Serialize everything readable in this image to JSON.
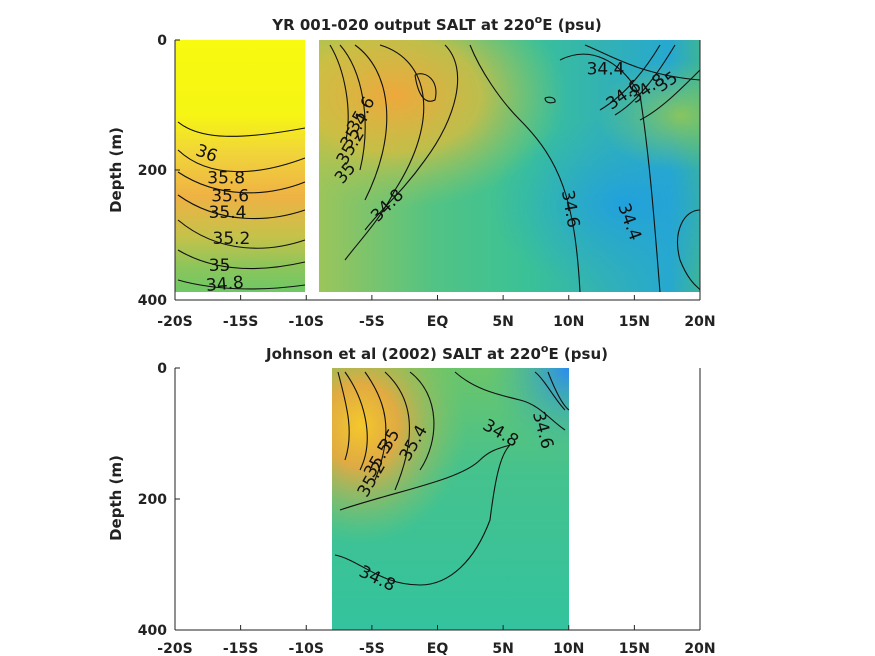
{
  "chart_data": [
    {
      "type": "heatmap",
      "title": "YR 001-020 output SALT at 220",
      "title_sup": "o",
      "title_end": "E (psu)",
      "ylabel": "Depth (m)",
      "xlim": [
        -20,
        20
      ],
      "ylim": [
        0,
        400
      ],
      "y_inverted": true,
      "x_ticks": [
        -20,
        -15,
        -10,
        -5,
        0,
        5,
        10,
        15,
        20
      ],
      "x_tick_labels": [
        "-20S",
        "-15S",
        "-10S",
        "-5S",
        "EQ",
        "5N",
        "10N",
        "15N",
        "20N"
      ],
      "y_ticks": [
        0,
        200,
        400
      ],
      "y_tick_labels": [
        "0",
        "200",
        "400"
      ],
      "data_extent": {
        "x": [
          -20,
          20
        ],
        "y": [
          0,
          385
        ]
      },
      "gap_x": [
        -10.2,
        -9.3
      ],
      "contour_labels": [
        {
          "text": "34.4",
          "x": 12.8,
          "y": 45,
          "angle": 0
        },
        {
          "text": "34.6",
          "x": 14.2,
          "y": 85,
          "angle": -35
        },
        {
          "text": "34.8",
          "x": 16.0,
          "y": 75,
          "angle": -35
        },
        {
          "text": "35",
          "x": 17.5,
          "y": 65,
          "angle": -35
        },
        {
          "text": "35.6",
          "x": -5.8,
          "y": 115,
          "angle": -60
        },
        {
          "text": "35.4",
          "x": -6.3,
          "y": 140,
          "angle": -60
        },
        {
          "text": "35.2",
          "x": -6.6,
          "y": 165,
          "angle": -60
        },
        {
          "text": "35",
          "x": -7.0,
          "y": 205,
          "angle": -50
        },
        {
          "text": "34.8",
          "x": -3.8,
          "y": 255,
          "angle": -45
        },
        {
          "text": "34.6",
          "x": 10.1,
          "y": 260,
          "angle": 80
        },
        {
          "text": "34.4",
          "x": 14.6,
          "y": 280,
          "angle": 70
        },
        {
          "text": "36",
          "x": -17.6,
          "y": 175,
          "angle": 20
        },
        {
          "text": "35.8",
          "x": -16.1,
          "y": 213,
          "angle": 0
        },
        {
          "text": "35.6",
          "x": -15.8,
          "y": 241,
          "angle": 0
        },
        {
          "text": "35.4",
          "x": -16.0,
          "y": 266,
          "angle": 0
        },
        {
          "text": "35.2",
          "x": -15.7,
          "y": 306,
          "angle": 0
        },
        {
          "text": "35",
          "x": -16.6,
          "y": 348,
          "angle": 0
        },
        {
          "text": "34.8",
          "x": -16.2,
          "y": 376,
          "angle": -5
        }
      ]
    },
    {
      "type": "heatmap",
      "title": "Johnson et al (2002) SALT at 220",
      "title_sup": "o",
      "title_end": "E (psu)",
      "ylabel": "Depth (m)",
      "xlim": [
        -20,
        20
      ],
      "ylim": [
        0,
        400
      ],
      "y_inverted": true,
      "x_ticks": [
        -20,
        -15,
        -10,
        -5,
        0,
        5,
        10,
        15,
        20
      ],
      "x_tick_labels": [
        "-20S",
        "-15S",
        "-10S",
        "-5S",
        "EQ",
        "5N",
        "10N",
        "15N",
        "20N"
      ],
      "y_ticks": [
        0,
        200,
        400
      ],
      "y_tick_labels": [
        "0",
        "200",
        "400"
      ],
      "data_extent": {
        "x": [
          -8,
          10
        ],
        "y": [
          0,
          400
        ]
      },
      "contour_labels": [
        {
          "text": "34.8",
          "x": 4.8,
          "y": 100,
          "angle": 30
        },
        {
          "text": "34.6",
          "x": 8.0,
          "y": 95,
          "angle": 75
        },
        {
          "text": "35",
          "x": -3.6,
          "y": 110,
          "angle": -60
        },
        {
          "text": "35.4",
          "x": -1.8,
          "y": 115,
          "angle": -60
        },
        {
          "text": "35.5",
          "x": -4.5,
          "y": 140,
          "angle": -60
        },
        {
          "text": "35.2",
          "x": -5.0,
          "y": 170,
          "angle": -60
        },
        {
          "text": "34.8",
          "x": -4.6,
          "y": 322,
          "angle": 25
        }
      ]
    }
  ]
}
